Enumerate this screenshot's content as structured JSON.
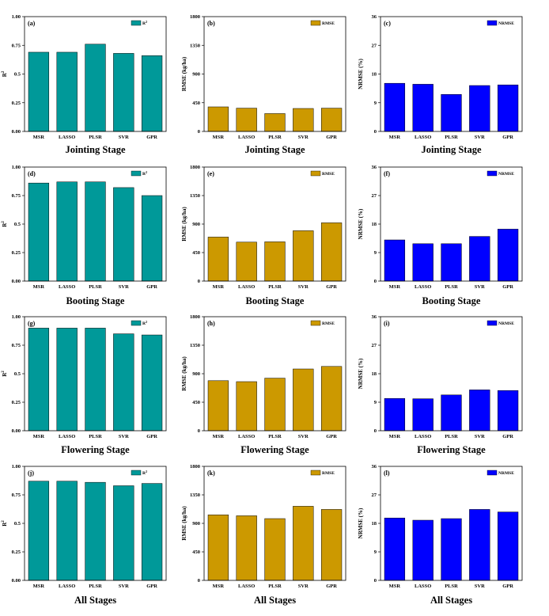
{
  "colors": {
    "r2": "#009999",
    "rmse": "#CC9900",
    "nrmse": "#0000FF"
  },
  "stage_labels": [
    "Jointing Stage",
    "Booting Stage",
    "Flowering Stage",
    "All Stages"
  ],
  "chart_data": [
    {
      "type": "bar",
      "panel_label": "(a)",
      "stage": "Jointing Stage",
      "metric": "r2",
      "legend": "R²",
      "ylabel": "R²",
      "categories": [
        "MSR",
        "LASSO",
        "PLSR",
        "SVR",
        "GPR"
      ],
      "values": [
        0.69,
        0.69,
        0.76,
        0.68,
        0.66
      ],
      "ylim": [
        0,
        1
      ],
      "yticks": [
        "0.00",
        "0.25",
        "0.5",
        "0.75",
        "1.00"
      ],
      "legend_position": "top-right",
      "grid": false
    },
    {
      "type": "bar",
      "panel_label": "(b)",
      "stage": "Jointing Stage",
      "metric": "rmse",
      "legend": "RMSE",
      "ylabel": "RMSE (kg/ha)",
      "categories": [
        "MSR",
        "LASSO",
        "PLSR",
        "SVR",
        "GPR"
      ],
      "values": [
        385,
        365,
        280,
        360,
        365
      ],
      "ylim": [
        0,
        1800
      ],
      "yticks": [
        "0",
        "450",
        "900",
        "1350",
        "1800"
      ],
      "legend_position": "top-right",
      "grid": false
    },
    {
      "type": "bar",
      "panel_label": "(c)",
      "stage": "Jointing Stage",
      "metric": "nrmse",
      "legend": "NRMSE",
      "ylabel": "NRMSE (%)",
      "categories": [
        "MSR",
        "LASSO",
        "PLSR",
        "SVR",
        "GPR"
      ],
      "values": [
        15.1,
        14.8,
        11.6,
        14.4,
        14.6
      ],
      "ylim": [
        0,
        36
      ],
      "yticks": [
        "0",
        "9",
        "18",
        "27",
        "36"
      ],
      "legend_position": "top-right",
      "grid": false
    },
    {
      "type": "bar",
      "panel_label": "(d)",
      "stage": "Booting Stage",
      "metric": "r2",
      "legend": "R²",
      "ylabel": "R²",
      "categories": [
        "MSR",
        "LASSO",
        "PLSR",
        "SVR",
        "GPR"
      ],
      "values": [
        0.86,
        0.87,
        0.87,
        0.82,
        0.75
      ],
      "ylim": [
        0,
        1
      ],
      "yticks": [
        "0.00",
        "0.25",
        "0.5",
        "0.75",
        "1.00"
      ],
      "legend_position": "top-right",
      "grid": false
    },
    {
      "type": "bar",
      "panel_label": "(e)",
      "stage": "Booting Stage",
      "metric": "rmse",
      "legend": "RMSE",
      "ylabel": "RMSE (kg/ha)",
      "categories": [
        "MSR",
        "LASSO",
        "PLSR",
        "SVR",
        "GPR"
      ],
      "values": [
        695,
        615,
        620,
        795,
        920
      ],
      "ylim": [
        0,
        1800
      ],
      "yticks": [
        "0",
        "450",
        "900",
        "1350",
        "1800"
      ],
      "legend_position": "top-right",
      "grid": false
    },
    {
      "type": "bar",
      "panel_label": "(f)",
      "stage": "Booting Stage",
      "metric": "nrmse",
      "legend": "NRMSE",
      "ylabel": "NRMSE (%)",
      "categories": [
        "MSR",
        "LASSO",
        "PLSR",
        "SVR",
        "GPR"
      ],
      "values": [
        13.0,
        11.8,
        11.8,
        14.1,
        16.4
      ],
      "ylim": [
        0,
        36
      ],
      "yticks": [
        "0",
        "9",
        "18",
        "27",
        "36"
      ],
      "legend_position": "top-right",
      "grid": false
    },
    {
      "type": "bar",
      "panel_label": "(g)",
      "stage": "Flowering Stage",
      "metric": "r2",
      "legend": "R²",
      "ylabel": "R²",
      "categories": [
        "MSR",
        "LASSO",
        "PLSR",
        "SVR",
        "GPR"
      ],
      "values": [
        0.9,
        0.9,
        0.9,
        0.85,
        0.84
      ],
      "ylim": [
        0,
        1
      ],
      "yticks": [
        "0.00",
        "0.25",
        "0.5",
        "0.75",
        "1.00"
      ],
      "legend_position": "top-right",
      "grid": false
    },
    {
      "type": "bar",
      "panel_label": "(h)",
      "stage": "Flowering Stage",
      "metric": "rmse",
      "legend": "RMSE",
      "ylabel": "RMSE (kg/ha)",
      "categories": [
        "MSR",
        "LASSO",
        "PLSR",
        "SVR",
        "GPR"
      ],
      "values": [
        790,
        775,
        830,
        975,
        1015
      ],
      "ylim": [
        0,
        1800
      ],
      "yticks": [
        "0",
        "450",
        "900",
        "1350",
        "1800"
      ],
      "legend_position": "top-right",
      "grid": false
    },
    {
      "type": "bar",
      "panel_label": "(i)",
      "stage": "Flowering Stage",
      "metric": "nrmse",
      "legend": "NRMSE",
      "ylabel": "NRMSE (%)",
      "categories": [
        "MSR",
        "LASSO",
        "PLSR",
        "SVR",
        "GPR"
      ],
      "values": [
        10.2,
        10.1,
        11.3,
        12.9,
        12.7
      ],
      "ylim": [
        0,
        36
      ],
      "yticks": [
        "0",
        "9",
        "18",
        "27",
        "36"
      ],
      "legend_position": "top-right",
      "grid": false
    },
    {
      "type": "bar",
      "panel_label": "(j)",
      "stage": "All Stages",
      "metric": "r2",
      "legend": "R²",
      "ylabel": "R²",
      "categories": [
        "MSR",
        "LASSO",
        "PLSR",
        "SVR",
        "GPR"
      ],
      "values": [
        0.87,
        0.87,
        0.86,
        0.83,
        0.85
      ],
      "ylim": [
        0,
        1
      ],
      "yticks": [
        "0.00",
        "0.25",
        "0.5",
        "0.75",
        "1.00"
      ],
      "legend_position": "top-right",
      "grid": false
    },
    {
      "type": "bar",
      "panel_label": "(k)",
      "stage": "All Stages",
      "metric": "rmse",
      "legend": "RMSE",
      "ylabel": "RMSE (kg/ha)",
      "categories": [
        "MSR",
        "LASSO",
        "PLSR",
        "SVR",
        "GPR"
      ],
      "values": [
        1035,
        1020,
        975,
        1170,
        1120
      ],
      "ylim": [
        0,
        1800
      ],
      "yticks": [
        "0",
        "450",
        "900",
        "1350",
        "1800"
      ],
      "legend_position": "top-right",
      "grid": false
    },
    {
      "type": "bar",
      "panel_label": "(l)",
      "stage": "All Stages",
      "metric": "nrmse",
      "legend": "NRMSE",
      "ylabel": "NRMSE (%)",
      "categories": [
        "MSR",
        "LASSO",
        "PLSR",
        "SVR",
        "GPR"
      ],
      "values": [
        19.7,
        19.0,
        19.5,
        22.4,
        21.6
      ],
      "ylim": [
        0,
        36
      ],
      "yticks": [
        "0",
        "9",
        "18",
        "27",
        "36"
      ],
      "legend_position": "top-right",
      "grid": false
    }
  ]
}
